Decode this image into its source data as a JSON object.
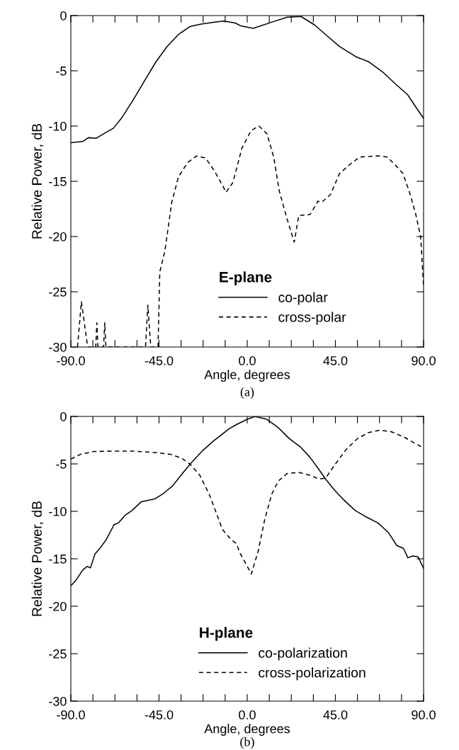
{
  "chart_data": [
    {
      "type": "line",
      "xlabel": "Angle, degrees",
      "ylabel": "Relative Power, dB",
      "legend_title": "E-plane",
      "legend": "bottom",
      "grid": false,
      "marker": "none",
      "xlim": [
        -90,
        90
      ],
      "ylim": [
        -30,
        0
      ],
      "xticks": [
        {
          "value": -90,
          "label": "-90.0"
        },
        {
          "value": -78.75,
          "label": null
        },
        {
          "value": -67.5,
          "label": null
        },
        {
          "value": -56.25,
          "label": null
        },
        {
          "value": -45,
          "label": "-45.0"
        },
        {
          "value": -33.75,
          "label": null
        },
        {
          "value": -22.5,
          "label": null
        },
        {
          "value": -11.25,
          "label": null
        },
        {
          "value": 0,
          "label": "0.0"
        },
        {
          "value": 11.25,
          "label": null
        },
        {
          "value": 22.5,
          "label": null
        },
        {
          "value": 33.75,
          "label": null
        },
        {
          "value": 45,
          "label": "45.0"
        },
        {
          "value": 56.25,
          "label": null
        },
        {
          "value": 67.5,
          "label": null
        },
        {
          "value": 78.75,
          "label": null
        },
        {
          "value": 90,
          "label": "90.0"
        }
      ],
      "yticks": [
        0,
        -5,
        -10,
        -15,
        -20,
        -25,
        -30
      ],
      "annotations": [
        "(a)"
      ],
      "series": [
        {
          "name": "co-polar",
          "color": "#000000",
          "line_style": "solid",
          "x": [
            -90,
            -84,
            -81,
            -77,
            -72.3,
            -68.3,
            -64.2,
            -58.4,
            -52.4,
            -46.6,
            -40.9,
            -35,
            -29.3,
            -23.5,
            -16.6,
            -11.9,
            -6.1,
            -3,
            3.1,
            12.4,
            20.5,
            27.4,
            34.4,
            40.2,
            47.1,
            55.2,
            62.2,
            69.1,
            76,
            81.8,
            86.5,
            90
          ],
          "values": [
            -11.5,
            -11.4,
            -11.05,
            -11.1,
            -10.6,
            -10.2,
            -9.3,
            -7.7,
            -5.9,
            -4.2,
            -2.8,
            -1.7,
            -1.0,
            -0.77,
            -0.6,
            -0.5,
            -0.67,
            -0.95,
            -1.16,
            -0.6,
            -0.15,
            -0.08,
            -0.85,
            -1.75,
            -2.8,
            -3.7,
            -4.2,
            -5.1,
            -6.25,
            -7.15,
            -8.4,
            -9.3
          ]
        },
        {
          "name": "cross-polar",
          "color": "#000000",
          "line_style": "dashed",
          "x": [
            -86.6,
            -84.6,
            -81.4,
            -77.3,
            -76.7,
            -76.2,
            -73.3,
            -72.7,
            -72.1,
            -51.9,
            -50.7,
            -49.2,
            -45.5,
            -44.6,
            -42,
            -38.5,
            -35.1,
            -30.4,
            -25.8,
            -21.2,
            -16.6,
            -12.5,
            -10.8,
            -7.3,
            -2.7,
            2.0,
            6.0,
            10.1,
            13.5,
            16.4,
            20.5,
            24.0,
            26.3,
            32.1,
            36.1,
            38,
            42.5,
            47.1,
            52.9,
            57.5,
            62.2,
            66.8,
            71.4,
            76,
            79.5,
            83,
            85.9,
            88.5,
            90
          ],
          "values": [
            -30,
            -25.9,
            -30,
            -30,
            -27.8,
            -30,
            -30,
            -27.8,
            -30,
            -30,
            -26.2,
            -30,
            -30,
            -23.2,
            -21.3,
            -16.9,
            -14.6,
            -13.3,
            -12.7,
            -12.9,
            -14.1,
            -15.4,
            -16.0,
            -15.1,
            -12.0,
            -10.4,
            -10.0,
            -10.7,
            -12.8,
            -15.9,
            -18.5,
            -20.5,
            -18.1,
            -18.0,
            -16.8,
            -16.9,
            -16.2,
            -14.3,
            -13.4,
            -12.8,
            -12.75,
            -12.7,
            -12.8,
            -13.6,
            -14.3,
            -16.1,
            -17.9,
            -20,
            -24.5
          ]
        }
      ]
    },
    {
      "type": "line",
      "xlabel": "Angle, degrees",
      "ylabel": "Relative Power, dB",
      "legend_title": "H-plane",
      "legend": "bottom",
      "grid": false,
      "marker": "none",
      "xlim": [
        -90,
        90
      ],
      "ylim": [
        -30,
        0
      ],
      "xticks": [
        {
          "value": -90,
          "label": "-90.0"
        },
        {
          "value": -78.75,
          "label": null
        },
        {
          "value": -67.5,
          "label": null
        },
        {
          "value": -56.25,
          "label": null
        },
        {
          "value": -45,
          "label": "-45.0"
        },
        {
          "value": -33.75,
          "label": null
        },
        {
          "value": -22.5,
          "label": null
        },
        {
          "value": -11.25,
          "label": null
        },
        {
          "value": 0,
          "label": "0.0"
        },
        {
          "value": 11.25,
          "label": null
        },
        {
          "value": 22.5,
          "label": null
        },
        {
          "value": 33.75,
          "label": null
        },
        {
          "value": 45,
          "label": "45.0"
        },
        {
          "value": 56.25,
          "label": null
        },
        {
          "value": 67.5,
          "label": null
        },
        {
          "value": 78.75,
          "label": null
        },
        {
          "value": 90,
          "label": "90.0"
        }
      ],
      "yticks": [
        0,
        -5,
        -10,
        -15,
        -20,
        -25,
        -30
      ],
      "annotations": [
        "(b)"
      ],
      "series": [
        {
          "name": "co-polarization",
          "color": "#000000",
          "line_style": "solid",
          "x": [
            -90,
            -87.5,
            -84,
            -81.7,
            -80,
            -77.7,
            -74.8,
            -72,
            -67.9,
            -65.6,
            -62.2,
            -58.7,
            -54.1,
            -47.2,
            -42.6,
            -38,
            -33.4,
            -28.8,
            -23,
            -17.3,
            -9.2,
            -5,
            0,
            4,
            10,
            15.9,
            21.6,
            27.4,
            32,
            36.6,
            40,
            44.7,
            49.3,
            55,
            60.8,
            66.5,
            68.8,
            72.3,
            76.3,
            79.7,
            82,
            84.4,
            87.2,
            90
          ],
          "values": [
            -17.85,
            -17.3,
            -16.2,
            -15.8,
            -15.96,
            -14.5,
            -13.8,
            -13.0,
            -11.4,
            -11.2,
            -10.4,
            -9.9,
            -9.0,
            -8.7,
            -8.1,
            -7.3,
            -6.1,
            -4.95,
            -3.65,
            -2.6,
            -1.3,
            -0.8,
            -0.3,
            0,
            -0.3,
            -1.19,
            -2.36,
            -3.26,
            -4.3,
            -5.6,
            -6.6,
            -7.8,
            -8.8,
            -9.9,
            -10.6,
            -11.2,
            -11.6,
            -12.3,
            -13.6,
            -13.9,
            -14.9,
            -14.7,
            -14.8,
            -16.0
          ]
        },
        {
          "name": "cross-polarization",
          "color": "#000000",
          "line_style": "dashed",
          "x": [
            -90,
            -85.2,
            -78.3,
            -67.9,
            -58.7,
            -47.2,
            -39.1,
            -33.4,
            -28.8,
            -24.2,
            -19.6,
            -16.1,
            -12.7,
            -8.1,
            -5.5,
            -3.7,
            -0.2,
            2.1,
            5.6,
            9.0,
            12.5,
            15.9,
            20.5,
            26.2,
            32,
            36.6,
            40,
            44.7,
            50.4,
            56.2,
            61.9,
            67.7,
            73.4,
            80.3,
            86.1,
            90
          ],
          "values": [
            -4.5,
            -4.0,
            -3.7,
            -3.65,
            -3.65,
            -3.8,
            -4.0,
            -4.4,
            -5.1,
            -6.2,
            -8.1,
            -10.0,
            -11.9,
            -13.0,
            -13.4,
            -14.4,
            -15.7,
            -16.6,
            -14.2,
            -10.8,
            -8.2,
            -6.8,
            -6.0,
            -5.9,
            -6.2,
            -6.6,
            -6.5,
            -5.1,
            -3.5,
            -2.35,
            -1.7,
            -1.45,
            -1.6,
            -2.2,
            -2.9,
            -3.3
          ]
        }
      ]
    }
  ]
}
